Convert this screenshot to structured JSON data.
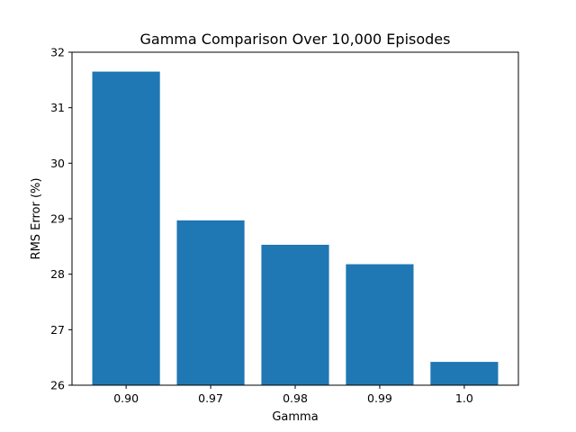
{
  "chart_data": {
    "type": "bar",
    "title": "Gamma Comparison Over 10,000 Episodes",
    "xlabel": "Gamma",
    "ylabel": "RMS Error (%)",
    "categories": [
      "0.90",
      "0.97",
      "0.98",
      "0.99",
      "1.0"
    ],
    "values": [
      31.65,
      28.97,
      28.53,
      28.18,
      26.42
    ],
    "ylim": [
      26,
      32
    ],
    "yticks": [
      "26",
      "27",
      "28",
      "29",
      "30",
      "31",
      "32"
    ],
    "bar_color": "#1f77b4",
    "grid": false,
    "legend": "none"
  }
}
